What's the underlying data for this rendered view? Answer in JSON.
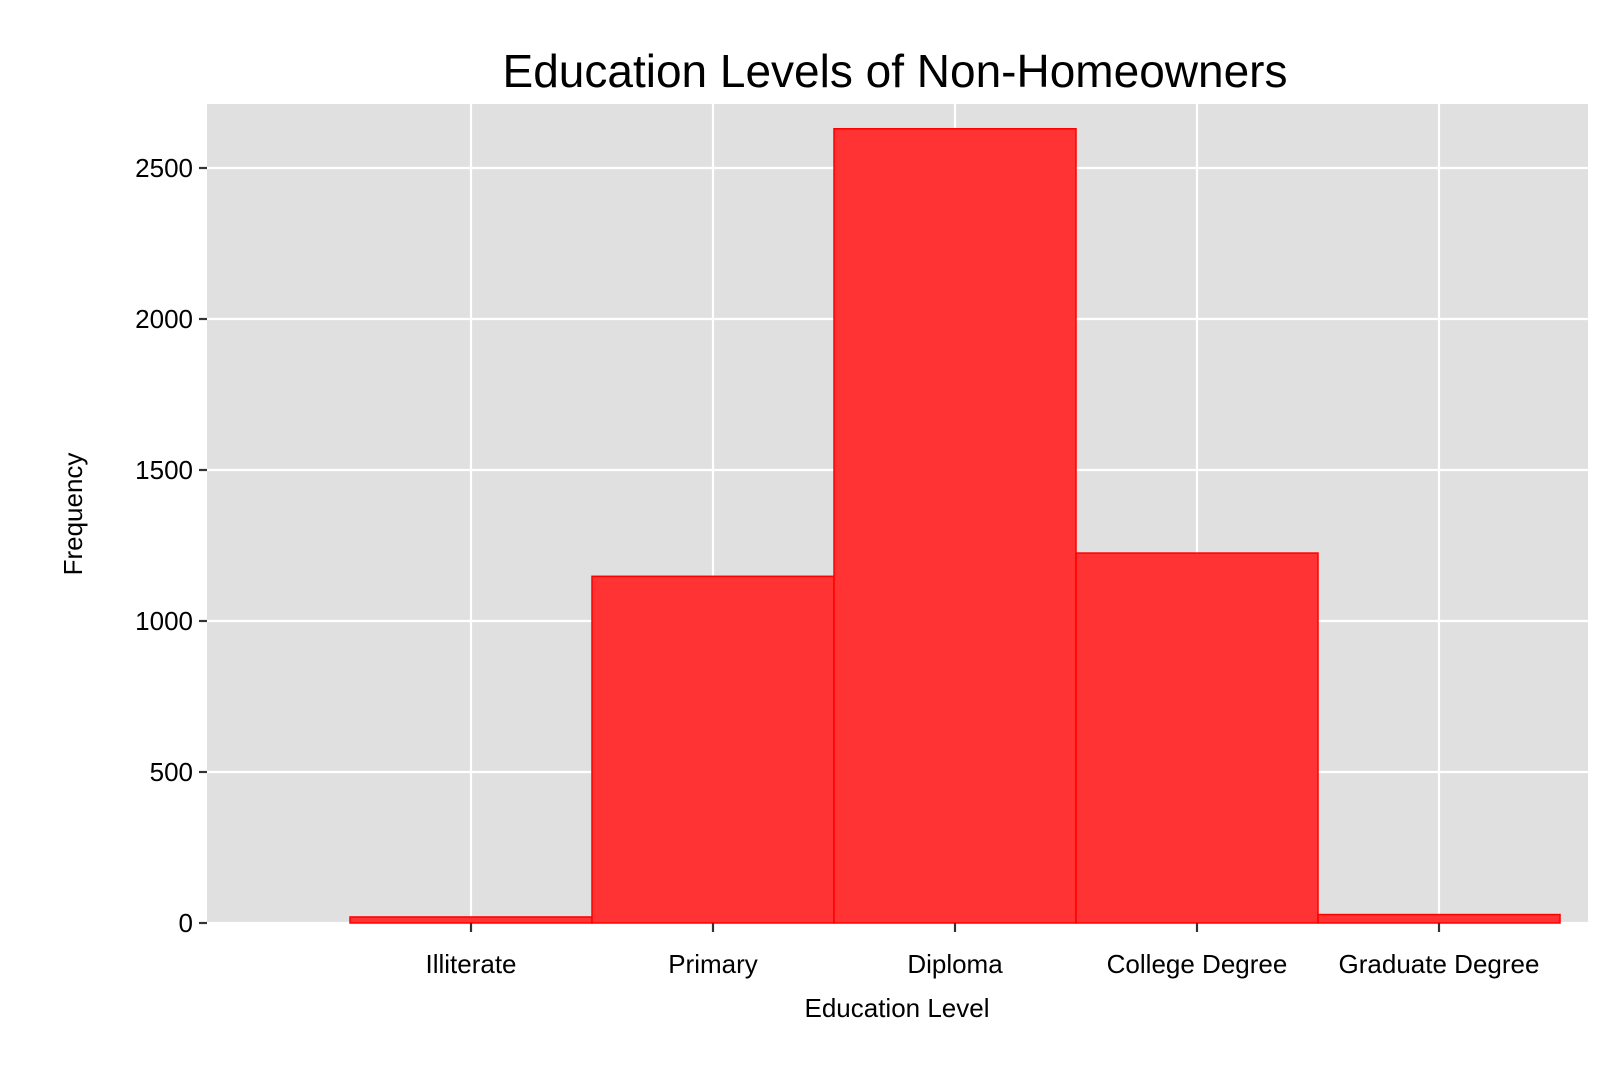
{
  "chart_data": {
    "type": "bar",
    "title": "Education Levels of Non-Homeowners",
    "xlabel": "Education Level",
    "ylabel": "Frequency",
    "categories": [
      "Illiterate",
      "Primary",
      "Diploma",
      "College Degree",
      "Graduate Degree"
    ],
    "values": [
      20,
      1148,
      2630,
      1225,
      28
    ],
    "ylim": [
      0,
      2700
    ],
    "yticks": [
      0,
      500,
      1000,
      1500,
      2000,
      2500
    ],
    "grid": true,
    "legend": "none",
    "colors": {
      "bar_fill": "#ff3333",
      "bar_stroke": "#ff0000",
      "panel_background": "#e0e0e0",
      "grid": "#ffffff"
    }
  }
}
